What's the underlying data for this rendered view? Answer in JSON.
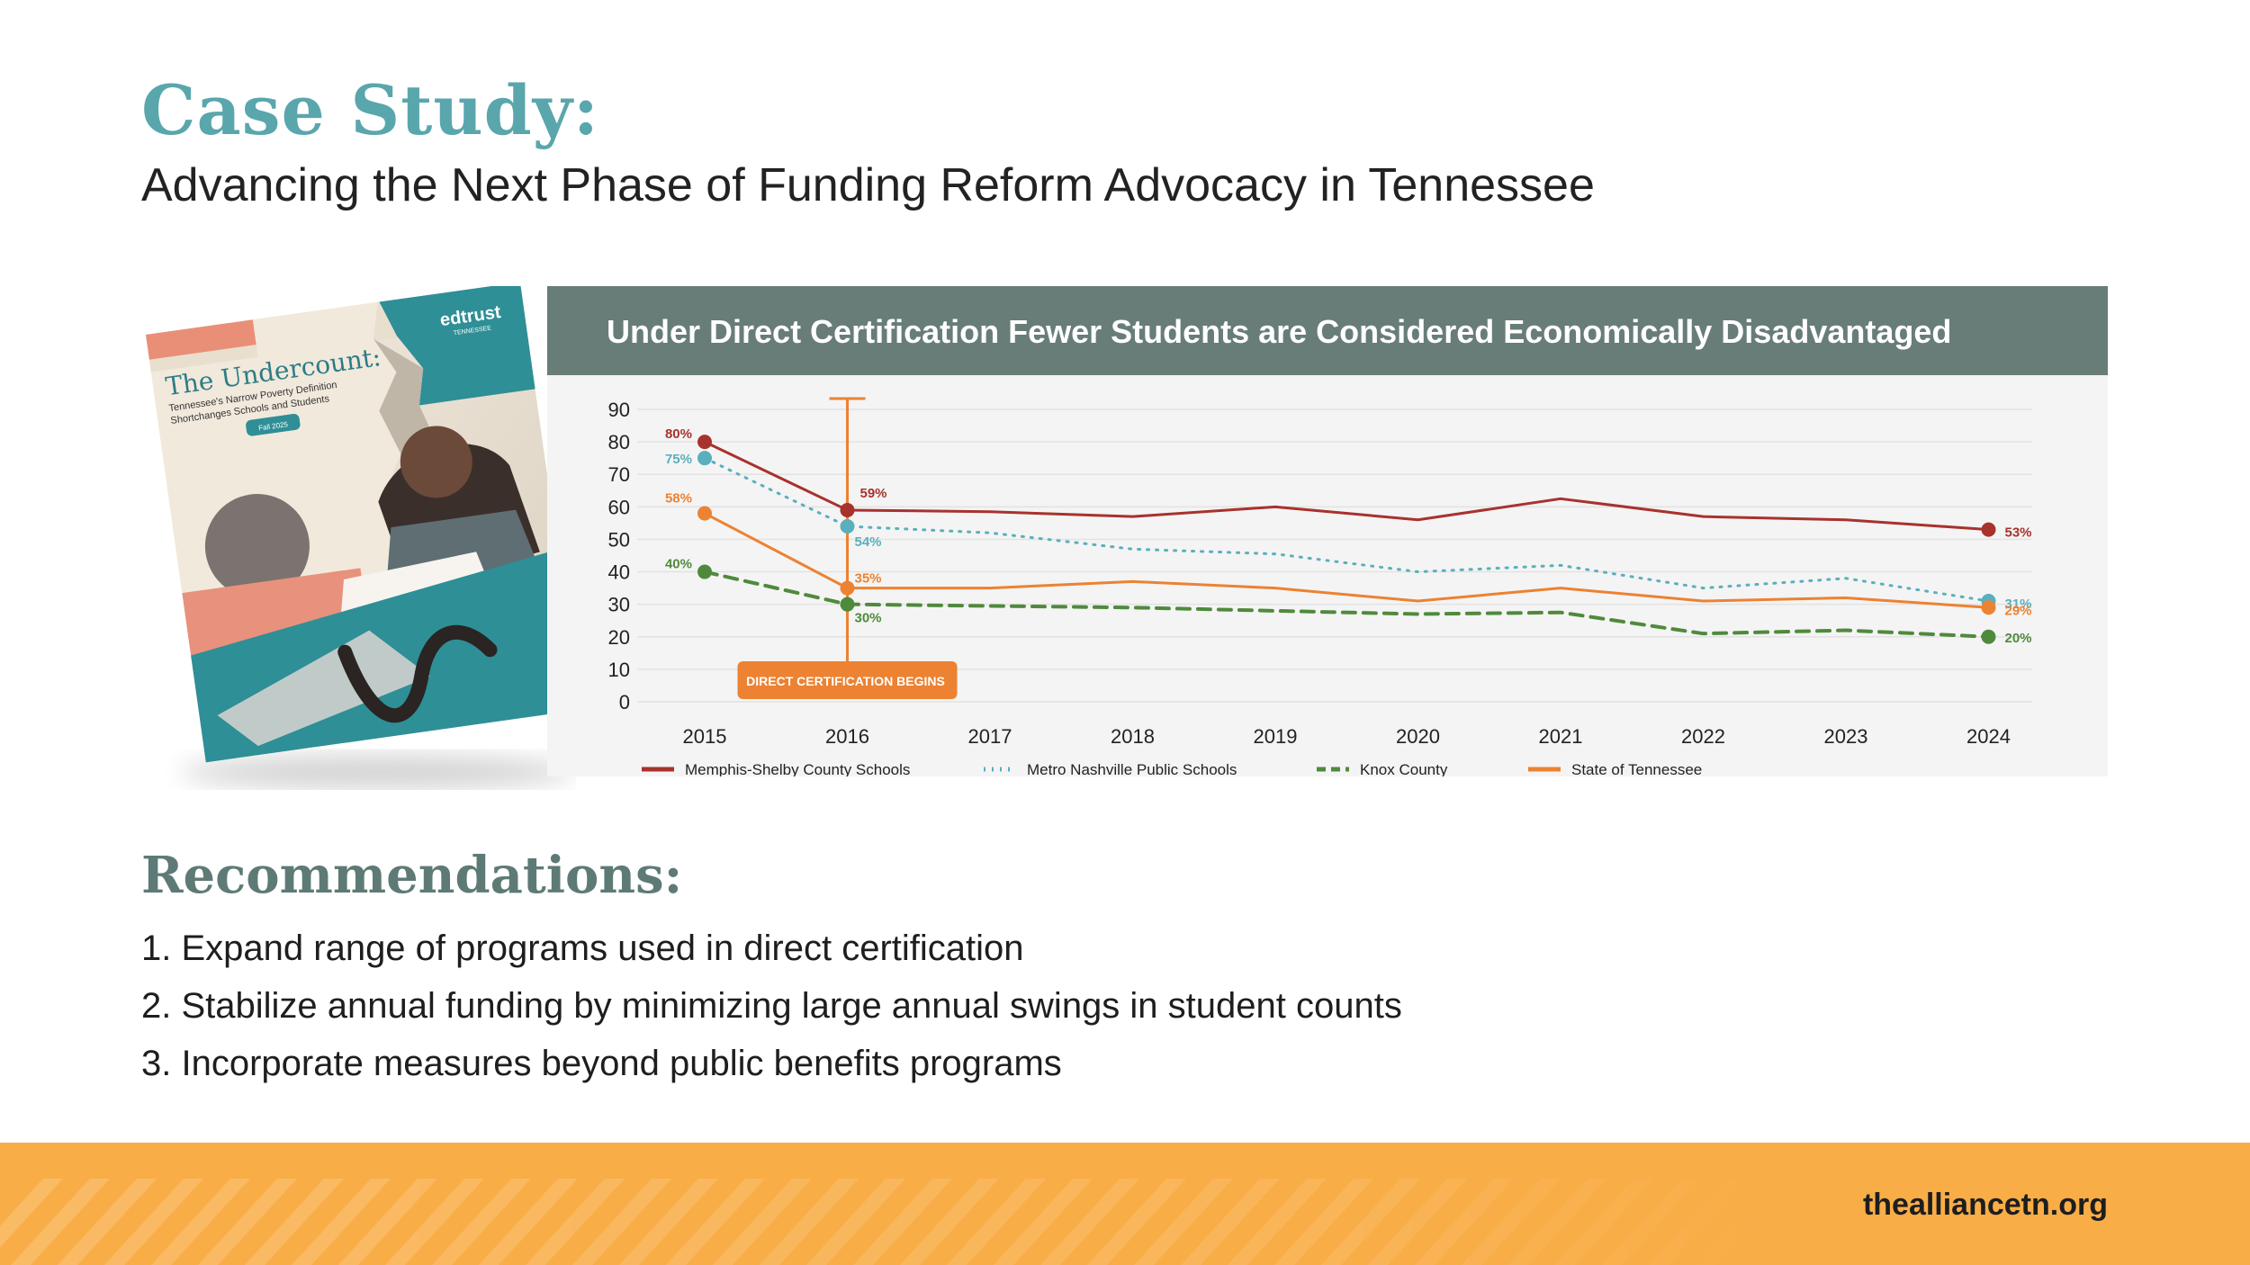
{
  "slide": {
    "title": "Case Study:",
    "subtitle": "Advancing the Next Phase of Funding Reform Advocacy in Tennessee"
  },
  "report_cover": {
    "brand": "edtrust",
    "brand_sub": "TENNESSEE",
    "title": "The Undercount:",
    "subtitle_line1": "Tennessee's Narrow Poverty Definition",
    "subtitle_line2": "Shortchanges Schools and Students",
    "badge": "Fall 2025"
  },
  "chart_data": {
    "type": "line",
    "title": "Under Direct Certification Fewer Students are Considered Economically Disadvantaged",
    "x": [
      "2015",
      "2016",
      "2017",
      "2018",
      "2019",
      "2020",
      "2021",
      "2022",
      "2023",
      "2024"
    ],
    "ylim": [
      0,
      90
    ],
    "yticks": [
      "0",
      "10",
      "20",
      "30",
      "40",
      "50",
      "60",
      "70",
      "80",
      "90"
    ],
    "grid": true,
    "legend_position": "bottom",
    "annotation": "DIRECT CERTIFICATION BEGINS",
    "series": [
      {
        "name": "Memphis-Shelby County Schools",
        "color": "#a8322d",
        "style": "solid",
        "values": [
          80,
          59,
          58.5,
          57,
          60,
          56,
          62.5,
          57,
          56,
          53
        ],
        "labels": [
          "80%",
          "59%",
          "",
          "",
          "",
          "",
          "",
          "",
          "",
          "53%"
        ]
      },
      {
        "name": "Metro Nashville Public Schools",
        "color": "#5aafbc",
        "style": "dotted",
        "values": [
          75,
          54,
          52,
          47,
          45.5,
          40,
          42,
          35,
          38,
          31
        ],
        "labels": [
          "75%",
          "54%",
          "",
          "",
          "",
          "",
          "",
          "",
          "",
          "31%"
        ]
      },
      {
        "name": "Knox County",
        "color": "#4f8a3c",
        "style": "dashed",
        "values": [
          40,
          30,
          29.5,
          29,
          28,
          27,
          27.5,
          21,
          22,
          20
        ],
        "labels": [
          "40%",
          "30%",
          "",
          "",
          "",
          "",
          "",
          "",
          "",
          "20%"
        ]
      },
      {
        "name": "State of Tennessee",
        "color": "#ec8232",
        "style": "solid",
        "values": [
          58,
          35,
          35,
          37,
          35,
          31,
          35,
          31,
          32,
          29
        ],
        "labels": [
          "58%",
          "35%",
          "",
          "",
          "",
          "",
          "",
          "",
          "",
          "29%"
        ]
      }
    ]
  },
  "recommendations": {
    "title": "Recommendations:",
    "items": [
      "1. Expand range of programs used in direct certification",
      "2. Stabilize annual funding by minimizing large annual swings in student counts",
      "3. Incorporate measures beyond public benefits programs"
    ]
  },
  "footer": {
    "url": "thealliancetn.org"
  }
}
